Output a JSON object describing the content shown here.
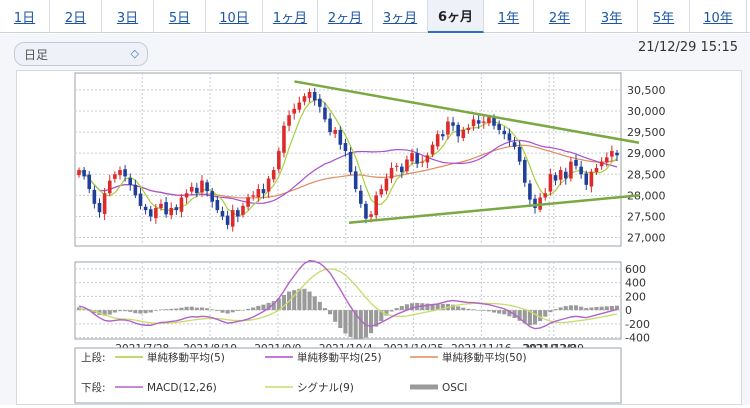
{
  "tabs": [
    {
      "label": "1日",
      "active": false
    },
    {
      "label": "2日",
      "active": false
    },
    {
      "label": "3日",
      "active": false
    },
    {
      "label": "5日",
      "active": false
    },
    {
      "label": "10日",
      "active": false
    },
    {
      "label": "1ヶ月",
      "active": false
    },
    {
      "label": "2ヶ月",
      "active": false
    },
    {
      "label": "3ヶ月",
      "active": false
    },
    {
      "label": "6ヶ月",
      "active": true
    },
    {
      "label": "1年",
      "active": false
    },
    {
      "label": "2年",
      "active": false
    },
    {
      "label": "3年",
      "active": false
    },
    {
      "label": "5年",
      "active": false
    },
    {
      "label": "10年",
      "active": false
    }
  ],
  "toolbar": {
    "period_select": "日足",
    "timestamp": "21/12/29 15:15"
  },
  "colors": {
    "up": "#dd2a2a",
    "down": "#1f3f9a",
    "ma5": "#a8cf3f",
    "ma25": "#a94fd0",
    "ma50": "#e3895c",
    "trend": "#7aa843",
    "macd": "#b462c8",
    "signal": "#c7dc6a",
    "osci": "#9a9a9a"
  },
  "legend": {
    "upper_label": "上段:",
    "lower_label": "下段:",
    "upper": [
      {
        "name": "単純移動平均(5)",
        "color_key": "ma5"
      },
      {
        "name": "単純移動平均(25)",
        "color_key": "ma25"
      },
      {
        "name": "単純移動平均(50)",
        "color_key": "ma50"
      }
    ],
    "lower": [
      {
        "name": "MACD(12,26)",
        "color_key": "macd"
      },
      {
        "name": "シグナル(9)",
        "color_key": "signal"
      },
      {
        "name": "OSCI",
        "color_key": "osci"
      }
    ]
  },
  "chart_data": [
    {
      "type": "candlestick",
      "ylim": [
        26800,
        30900
      ],
      "yticks": [
        27000,
        27500,
        28000,
        28500,
        29000,
        29500,
        30000,
        30500
      ],
      "ytick_labels": [
        "27,000",
        "27,500",
        "28,000",
        "28,500",
        "29,000",
        "29,500",
        "30,000",
        "30,500"
      ],
      "xtick_labels": [
        "2021/7/28",
        "2021/8/19",
        "2021/9/9",
        "2021/10/4",
        "2021/10/25",
        "2021/11/16",
        "2021/12/8",
        "2021/12/29"
      ],
      "grid": true,
      "closes": [
        28600,
        28450,
        28150,
        27800,
        27600,
        28050,
        28350,
        28500,
        28600,
        28450,
        28250,
        28000,
        27750,
        27650,
        27500,
        27700,
        27800,
        27550,
        27700,
        27650,
        27950,
        28050,
        28200,
        28050,
        28350,
        28100,
        27850,
        27650,
        27500,
        27300,
        27650,
        27500,
        27750,
        27950,
        28000,
        28150,
        28050,
        28400,
        28600,
        29050,
        29650,
        29900,
        30050,
        30200,
        30350,
        30450,
        30250,
        30100,
        29800,
        29500,
        29550,
        29200,
        29050,
        28550,
        28150,
        27800,
        27450,
        27550,
        28000,
        28150,
        28400,
        28650,
        28700,
        28550,
        28850,
        29000,
        28750,
        28800,
        28950,
        29200,
        29450,
        29400,
        29750,
        29650,
        29400,
        29550,
        29600,
        29800,
        29700,
        29750,
        29850,
        29650,
        29550,
        29450,
        29300,
        29150,
        28800,
        28300,
        27900,
        27700,
        27950,
        28050,
        28500,
        28350,
        28600,
        28400,
        28800,
        28700,
        28500,
        28250,
        28550,
        28650,
        28800,
        28900,
        29050,
        28950
      ],
      "trendlines": [
        {
          "from": [
            "2021/9/9",
            30700
          ],
          "to": [
            "2021/12/29",
            29200
          ]
        },
        {
          "from": [
            "2021/10/4",
            27350
          ],
          "to": [
            "2021/12/29",
            28000
          ]
        }
      ]
    },
    {
      "type": "macd",
      "ylim": [
        -420,
        700
      ],
      "yticks": [
        600,
        400,
        200,
        0,
        -200,
        -400
      ],
      "ytick_labels": [
        "600",
        "400",
        "200",
        "0",
        "-200",
        "-400"
      ],
      "macd_points": [
        60,
        40,
        0,
        -60,
        -110,
        -150,
        -160,
        -150,
        -140,
        -145,
        -160,
        -190,
        -210,
        -220,
        -220,
        -200,
        -180,
        -175,
        -165,
        -155,
        -135,
        -110,
        -95,
        -100,
        -90,
        -95,
        -110,
        -135,
        -165,
        -190,
        -180,
        -165,
        -150,
        -130,
        -100,
        -60,
        -20,
        30,
        90,
        170,
        280,
        400,
        500,
        600,
        680,
        720,
        710,
        680,
        620,
        540,
        420,
        300,
        170,
        50,
        -60,
        -150,
        -220,
        -235,
        -210,
        -180,
        -140,
        -100,
        -60,
        -30,
        0,
        30,
        50,
        60,
        70,
        80,
        90,
        110,
        130,
        140,
        130,
        120,
        110,
        110,
        100,
        90,
        80,
        60,
        40,
        20,
        -20,
        -60,
        -120,
        -180,
        -240,
        -270,
        -260,
        -230,
        -190,
        -160,
        -140,
        -120,
        -100,
        -90,
        -100,
        -110,
        -90,
        -70,
        -50,
        -30,
        -10,
        10
      ],
      "signal_points": [
        20,
        15,
        5,
        -15,
        -40,
        -70,
        -95,
        -115,
        -125,
        -130,
        -135,
        -145,
        -160,
        -175,
        -185,
        -190,
        -190,
        -188,
        -184,
        -178,
        -170,
        -158,
        -146,
        -136,
        -128,
        -122,
        -120,
        -122,
        -128,
        -140,
        -148,
        -152,
        -152,
        -148,
        -138,
        -122,
        -100,
        -75,
        -40,
        0,
        60,
        130,
        210,
        290,
        370,
        450,
        510,
        560,
        590,
        600,
        590,
        560,
        510,
        440,
        360,
        270,
        180,
        100,
        30,
        -20,
        -60,
        -80,
        -90,
        -90,
        -85,
        -70,
        -55,
        -40,
        -25,
        -10,
        5,
        20,
        40,
        60,
        75,
        85,
        92,
        98,
        100,
        100,
        98,
        95,
        90,
        82,
        70,
        55,
        35,
        10,
        -20,
        -60,
        -100,
        -135,
        -160,
        -175,
        -180,
        -178,
        -170,
        -160,
        -150,
        -140,
        -128,
        -115,
        -100,
        -85,
        -70,
        -55
      ]
    }
  ]
}
